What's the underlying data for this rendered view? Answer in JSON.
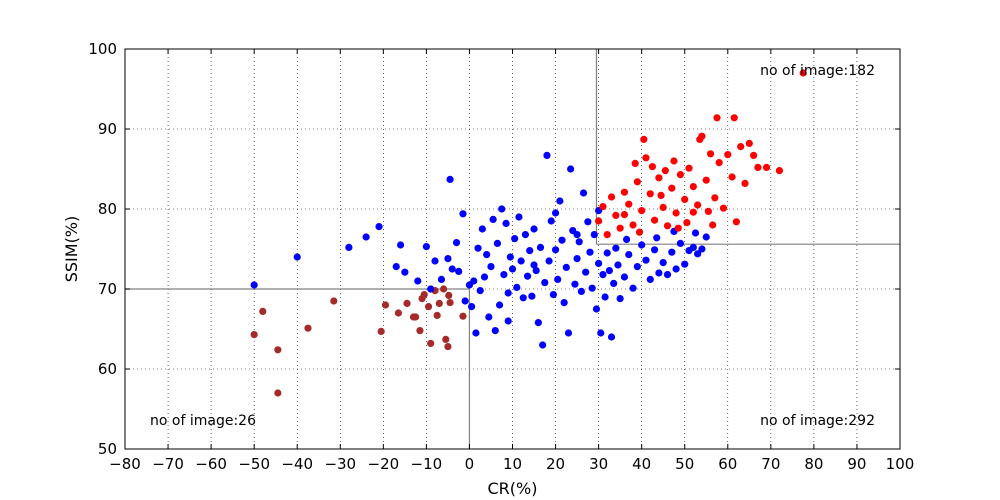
{
  "chart_data": {
    "type": "scatter",
    "xlabel": "CR(%)",
    "ylabel": "SSIM(%)",
    "xlim": [
      -80,
      100
    ],
    "ylim": [
      50,
      100
    ],
    "xticks": [
      -80,
      -70,
      -60,
      -50,
      -40,
      -30,
      -20,
      -10,
      0,
      10,
      20,
      30,
      40,
      50,
      60,
      70,
      80,
      90,
      100
    ],
    "yticks": [
      50,
      60,
      70,
      80,
      90,
      100
    ],
    "x_tick_labels": [
      "−80",
      "−70",
      "−60",
      "−50",
      "−40",
      "−30",
      "−20",
      "−10",
      "0",
      "10",
      "20",
      "30",
      "40",
      "50",
      "60",
      "70",
      "80",
      "90",
      "100"
    ],
    "y_tick_labels": [
      "50",
      "60",
      "70",
      "80",
      "90",
      "100"
    ],
    "grid": true,
    "grid_style": "dotted",
    "reference_lines": [
      {
        "orientation": "vertical",
        "x": 0,
        "y_range": [
          50,
          70
        ]
      },
      {
        "orientation": "horizontal",
        "y": 70,
        "x_range": [
          -80,
          0
        ]
      },
      {
        "orientation": "vertical",
        "x": 29.5,
        "y_range": [
          75.6,
          100
        ]
      },
      {
        "orientation": "horizontal",
        "y": 75.6,
        "x_range": [
          29.5,
          100
        ]
      }
    ],
    "annotations": [
      {
        "text": "no of image:182",
        "position": "top-right"
      },
      {
        "text": "no of image:26",
        "position": "bottom-left"
      },
      {
        "text": "no of image:292",
        "position": "bottom-right"
      }
    ],
    "series": [
      {
        "color": "#a52a2a",
        "points": [
          [
            -50,
            64.3
          ],
          [
            -48,
            67.2
          ],
          [
            -44.5,
            62.4
          ],
          [
            -44.5,
            57.0
          ],
          [
            -37.5,
            65.1
          ],
          [
            -31.5,
            68.5
          ],
          [
            -20.5,
            64.7
          ],
          [
            -19.5,
            68.0
          ],
          [
            -16.5,
            67.0
          ],
          [
            -14.5,
            68.2
          ],
          [
            -13,
            66.5
          ],
          [
            -12.5,
            66.5
          ],
          [
            -11.5,
            64.8
          ],
          [
            -11,
            68.8
          ],
          [
            -10.5,
            69.3
          ],
          [
            -9.5,
            67.8
          ],
          [
            -9,
            63.2
          ],
          [
            -8,
            69.8
          ],
          [
            -7.5,
            66.7
          ],
          [
            -7,
            68.2
          ],
          [
            -6,
            70.0
          ],
          [
            -5.5,
            63.7
          ],
          [
            -5,
            62.8
          ],
          [
            -4.8,
            69.2
          ],
          [
            -4.5,
            68.3
          ],
          [
            -1.5,
            66.6
          ]
        ]
      },
      {
        "color": "#0000ff",
        "points": [
          [
            -50,
            70.5
          ],
          [
            -40,
            74.0
          ],
          [
            -28,
            75.2
          ],
          [
            -24,
            76.5
          ],
          [
            -21,
            77.8
          ],
          [
            -17,
            72.8
          ],
          [
            -16,
            75.5
          ],
          [
            -15,
            72.1
          ],
          [
            -12,
            71.0
          ],
          [
            -10,
            75.3
          ],
          [
            -9,
            70.0
          ],
          [
            -8,
            73.5
          ],
          [
            -6.5,
            71.2
          ],
          [
            -5,
            73.8
          ],
          [
            -4.5,
            83.7
          ],
          [
            -4,
            72.5
          ],
          [
            -3,
            75.8
          ],
          [
            -2.5,
            72.2
          ],
          [
            -1.5,
            79.4
          ],
          [
            -1,
            68.5
          ],
          [
            0,
            70.5
          ],
          [
            0.5,
            67.8
          ],
          [
            1,
            71.0
          ],
          [
            1.5,
            64.5
          ],
          [
            2,
            75.1
          ],
          [
            2.5,
            69.8
          ],
          [
            3,
            77.5
          ],
          [
            3.5,
            71.5
          ],
          [
            4,
            74.3
          ],
          [
            4.5,
            66.5
          ],
          [
            5,
            72.8
          ],
          [
            5.5,
            78.7
          ],
          [
            6,
            64.8
          ],
          [
            6.5,
            75.7
          ],
          [
            7,
            68.0
          ],
          [
            7.5,
            80.0
          ],
          [
            8,
            71.8
          ],
          [
            8.5,
            78.2
          ],
          [
            9,
            69.5
          ],
          [
            9.5,
            74.0
          ],
          [
            10,
            72.5
          ],
          [
            10.5,
            76.3
          ],
          [
            11,
            70.2
          ],
          [
            11.5,
            79.0
          ],
          [
            12,
            73.5
          ],
          [
            12.5,
            68.9
          ],
          [
            13,
            76.8
          ],
          [
            13.5,
            71.6
          ],
          [
            14,
            74.8
          ],
          [
            14.5,
            69.1
          ],
          [
            15,
            77.5
          ],
          [
            15.5,
            72.3
          ],
          [
            16,
            65.8
          ],
          [
            16.5,
            75.2
          ],
          [
            17,
            63.0
          ],
          [
            17.5,
            70.8
          ],
          [
            18,
            86.7
          ],
          [
            18.5,
            73.5
          ],
          [
            19,
            78.5
          ],
          [
            19.5,
            69.3
          ],
          [
            20,
            74.9
          ],
          [
            20.5,
            71.2
          ],
          [
            21,
            81.0
          ],
          [
            21.5,
            76.1
          ],
          [
            22,
            68.3
          ],
          [
            22.5,
            72.7
          ],
          [
            23,
            64.5
          ],
          [
            23.5,
            85.0
          ],
          [
            24,
            77.3
          ],
          [
            24.5,
            70.6
          ],
          [
            25,
            73.8
          ],
          [
            25.5,
            75.9
          ],
          [
            26,
            69.7
          ],
          [
            26.5,
            82.0
          ],
          [
            27,
            72.1
          ],
          [
            27.5,
            78.4
          ],
          [
            28,
            74.6
          ],
          [
            28.5,
            70.1
          ],
          [
            29,
            76.8
          ],
          [
            29.5,
            67.5
          ],
          [
            30,
            73.2
          ],
          [
            30.5,
            64.5
          ],
          [
            31,
            71.8
          ],
          [
            31.5,
            69.0
          ],
          [
            32,
            74.5
          ],
          [
            32.5,
            72.3
          ],
          [
            33,
            64.0
          ],
          [
            33.5,
            70.7
          ],
          [
            34,
            75.1
          ],
          [
            34.5,
            73.0
          ],
          [
            35,
            68.8
          ],
          [
            36,
            71.5
          ],
          [
            37,
            74.3
          ],
          [
            38,
            70.1
          ],
          [
            39,
            72.8
          ],
          [
            40,
            75.5
          ],
          [
            41,
            73.6
          ],
          [
            42,
            71.2
          ],
          [
            43,
            74.9
          ],
          [
            44,
            72.0
          ],
          [
            45,
            73.3
          ],
          [
            46,
            71.8
          ],
          [
            47,
            74.6
          ],
          [
            48,
            72.5
          ],
          [
            49,
            75.7
          ],
          [
            50,
            73.1
          ],
          [
            51,
            74.8
          ],
          [
            52,
            75.2
          ],
          [
            53,
            74.4
          ],
          [
            54,
            75.0
          ],
          [
            55,
            76.5
          ],
          [
            9,
            66.0
          ],
          [
            15,
            73.0
          ],
          [
            20,
            79.5
          ],
          [
            25,
            76.8
          ],
          [
            30,
            79.8
          ],
          [
            36.5,
            76.2
          ],
          [
            43.5,
            76.4
          ],
          [
            47.5,
            77.2
          ],
          [
            52.5,
            77.0
          ]
        ]
      },
      {
        "color": "#ff0000",
        "points": [
          [
            30,
            78.5
          ],
          [
            31,
            80.3
          ],
          [
            32,
            76.8
          ],
          [
            33,
            81.5
          ],
          [
            34,
            79.2
          ],
          [
            35,
            77.6
          ],
          [
            36,
            82.1
          ],
          [
            37,
            80.6
          ],
          [
            38,
            78.0
          ],
          [
            38.5,
            85.7
          ],
          [
            39,
            83.4
          ],
          [
            40,
            79.8
          ],
          [
            40.5,
            88.7
          ],
          [
            41,
            86.4
          ],
          [
            42,
            81.9
          ],
          [
            42.5,
            85.3
          ],
          [
            43,
            78.6
          ],
          [
            44,
            83.9
          ],
          [
            45,
            80.2
          ],
          [
            45.5,
            84.8
          ],
          [
            46,
            77.9
          ],
          [
            47,
            82.6
          ],
          [
            47.5,
            86.0
          ],
          [
            48,
            79.5
          ],
          [
            49,
            84.3
          ],
          [
            50,
            81.2
          ],
          [
            50.5,
            78.3
          ],
          [
            51,
            85.1
          ],
          [
            52,
            82.8
          ],
          [
            53,
            80.5
          ],
          [
            53.5,
            88.7
          ],
          [
            54,
            89.1
          ],
          [
            55,
            83.6
          ],
          [
            55.5,
            79.7
          ],
          [
            56,
            86.9
          ],
          [
            57,
            81.4
          ],
          [
            57.5,
            91.4
          ],
          [
            58,
            85.8
          ],
          [
            59,
            80.1
          ],
          [
            60,
            86.8
          ],
          [
            61,
            84.0
          ],
          [
            61.5,
            91.4
          ],
          [
            62,
            78.4
          ],
          [
            63,
            87.8
          ],
          [
            64,
            83.2
          ],
          [
            65,
            88.2
          ],
          [
            66,
            86.7
          ],
          [
            67,
            85.2
          ],
          [
            69,
            85.2
          ],
          [
            72,
            84.8
          ],
          [
            77.5,
            97.0
          ],
          [
            36,
            79.3
          ],
          [
            39.5,
            77.1
          ],
          [
            44.5,
            81.7
          ],
          [
            48.5,
            77.6
          ],
          [
            52,
            79.6
          ],
          [
            56.5,
            78.0
          ]
        ]
      }
    ]
  }
}
